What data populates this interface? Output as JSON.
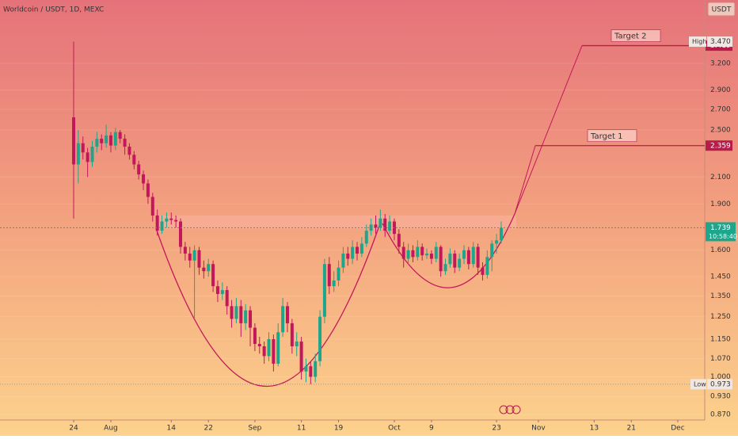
{
  "chart_data": {
    "type": "candlestick",
    "title": "Worldcoin / USDT, 1D, MEXC",
    "currency": "USDT",
    "log_scale": true,
    "grid": true,
    "up_color": "#1fa58c",
    "down_color": "#c2185b",
    "xlim": [
      -23.85,
      127.8
    ],
    "ylim": [
      0.852,
      4.05
    ],
    "xticks": [
      {
        "value": -8,
        "label": "24"
      },
      {
        "value": 0,
        "label": "Aug"
      },
      {
        "value": 13,
        "label": "14"
      },
      {
        "value": 21,
        "label": "22"
      },
      {
        "value": 31,
        "label": "Sep"
      },
      {
        "value": 41,
        "label": "11"
      },
      {
        "value": 49,
        "label": "19"
      },
      {
        "value": 61,
        "label": "Oct"
      },
      {
        "value": 69,
        "label": "9"
      },
      {
        "value": 83,
        "label": "23"
      },
      {
        "value": 92,
        "label": "Nov"
      },
      {
        "value": 104,
        "label": "13"
      },
      {
        "value": 112,
        "label": "21"
      },
      {
        "value": 122,
        "label": "Dec"
      }
    ],
    "yticks": [
      {
        "value": 3.2,
        "label": "3.200"
      },
      {
        "value": 2.9,
        "label": "2.900"
      },
      {
        "value": 2.7,
        "label": "2.700"
      },
      {
        "value": 2.5,
        "label": "2.500"
      },
      {
        "value": 2.1,
        "label": "2.100"
      },
      {
        "value": 1.9,
        "label": "1.900"
      },
      {
        "value": 1.6,
        "label": "1.600"
      },
      {
        "value": 1.45,
        "label": "1.450"
      },
      {
        "value": 1.35,
        "label": "1.350"
      },
      {
        "value": 1.25,
        "label": "1.250"
      },
      {
        "value": 1.15,
        "label": "1.150"
      },
      {
        "value": 1.07,
        "label": "1.070"
      },
      {
        "value": 1,
        "label": "1.000"
      },
      {
        "value": 0.93,
        "label": "0.930"
      },
      {
        "value": 0.87,
        "label": "0.870"
      }
    ],
    "x": [
      -8,
      -7,
      -6,
      -5,
      -4,
      -3,
      -2,
      -1,
      0,
      1,
      2,
      3,
      4,
      5,
      6,
      7,
      8,
      9,
      10,
      11,
      12,
      13,
      14,
      15,
      16,
      17,
      18,
      19,
      20,
      21,
      22,
      23,
      24,
      25,
      26,
      27,
      28,
      29,
      30,
      31,
      32,
      33,
      34,
      35,
      36,
      37,
      38,
      39,
      40,
      41,
      42,
      43,
      44,
      45,
      46,
      47,
      48,
      49,
      50,
      51,
      52,
      53,
      54,
      55,
      56,
      57,
      58,
      59,
      60,
      61,
      62,
      63,
      64,
      65,
      66,
      67,
      68,
      69,
      70,
      71,
      72,
      73,
      74,
      75,
      76,
      77,
      78,
      79,
      80,
      81,
      82,
      83,
      84
    ],
    "open": [
      2.62,
      2.2,
      2.38,
      2.3,
      2.22,
      2.35,
      2.42,
      2.38,
      2.45,
      2.36,
      2.48,
      2.42,
      2.35,
      2.28,
      2.2,
      2.12,
      2.05,
      1.95,
      1.82,
      1.72,
      1.78,
      1.8,
      1.79,
      1.78,
      1.62,
      1.58,
      1.54,
      1.6,
      1.5,
      1.48,
      1.52,
      1.4,
      1.36,
      1.38,
      1.3,
      1.24,
      1.3,
      1.22,
      1.28,
      1.2,
      1.13,
      1.12,
      1.08,
      1.15,
      1.05,
      1.18,
      1.3,
      1.22,
      1.12,
      1.14,
      1.02,
      1.04,
      1.0,
      1.06,
      1.25,
      1.52,
      1.4,
      1.43,
      1.5,
      1.58,
      1.55,
      1.62,
      1.58,
      1.64,
      1.72,
      1.76,
      1.74,
      1.8,
      1.72,
      1.78,
      1.7,
      1.62,
      1.55,
      1.6,
      1.56,
      1.62,
      1.57,
      1.58,
      1.55,
      1.62,
      1.48,
      1.52,
      1.58,
      1.5,
      1.55,
      1.6,
      1.52,
      1.62,
      1.5,
      1.46,
      1.56,
      1.64,
      1.66
    ],
    "high": [
      3.47,
      2.5,
      2.44,
      2.34,
      2.4,
      2.48,
      2.46,
      2.55,
      2.48,
      2.52,
      2.5,
      2.46,
      2.38,
      2.31,
      2.23,
      2.15,
      2.08,
      1.98,
      1.86,
      1.82,
      1.84,
      1.84,
      1.82,
      1.8,
      1.65,
      1.62,
      1.63,
      1.62,
      1.54,
      1.55,
      1.54,
      1.43,
      1.42,
      1.4,
      1.33,
      1.34,
      1.33,
      1.31,
      1.3,
      1.22,
      1.16,
      1.14,
      1.18,
      1.17,
      1.22,
      1.34,
      1.32,
      1.24,
      1.18,
      1.16,
      1.07,
      1.06,
      1.09,
      1.28,
      1.55,
      1.56,
      1.48,
      1.54,
      1.62,
      1.62,
      1.66,
      1.65,
      1.68,
      1.76,
      1.8,
      1.82,
      1.86,
      1.83,
      1.82,
      1.8,
      1.73,
      1.65,
      1.64,
      1.63,
      1.66,
      1.64,
      1.61,
      1.6,
      1.65,
      1.63,
      1.55,
      1.61,
      1.6,
      1.58,
      1.63,
      1.62,
      1.65,
      1.64,
      1.53,
      1.6,
      1.66,
      1.7,
      1.78
    ],
    "low": [
      1.8,
      2.05,
      2.24,
      2.1,
      2.18,
      2.3,
      2.32,
      2.34,
      2.3,
      2.32,
      2.38,
      2.28,
      2.24,
      2.16,
      2.08,
      2.0,
      1.9,
      1.78,
      1.69,
      1.7,
      1.74,
      1.76,
      1.74,
      1.58,
      1.54,
      1.5,
      1.24,
      1.46,
      1.44,
      1.45,
      1.37,
      1.32,
      1.33,
      1.26,
      1.2,
      1.22,
      1.16,
      1.19,
      1.12,
      1.1,
      1.09,
      1.05,
      1.06,
      1.02,
      1.04,
      1.16,
      1.18,
      1.09,
      1.08,
      0.99,
      0.98,
      0.973,
      0.98,
      1.04,
      1.22,
      1.36,
      1.37,
      1.4,
      1.47,
      1.51,
      1.52,
      1.54,
      1.56,
      1.62,
      1.69,
      1.7,
      1.72,
      1.68,
      1.7,
      1.66,
      1.58,
      1.5,
      1.52,
      1.53,
      1.54,
      1.54,
      1.55,
      1.52,
      1.53,
      1.45,
      1.46,
      1.5,
      1.47,
      1.48,
      1.52,
      1.49,
      1.5,
      1.46,
      1.43,
      1.44,
      1.48,
      1.58,
      1.64
    ],
    "close": [
      2.2,
      2.38,
      2.3,
      2.22,
      2.35,
      2.42,
      2.38,
      2.45,
      2.36,
      2.48,
      2.42,
      2.35,
      2.28,
      2.2,
      2.12,
      2.05,
      1.95,
      1.82,
      1.72,
      1.78,
      1.8,
      1.79,
      1.78,
      1.62,
      1.58,
      1.54,
      1.6,
      1.5,
      1.48,
      1.52,
      1.4,
      1.36,
      1.38,
      1.3,
      1.24,
      1.3,
      1.22,
      1.28,
      1.2,
      1.13,
      1.12,
      1.08,
      1.15,
      1.05,
      1.18,
      1.3,
      1.22,
      1.12,
      1.14,
      1.02,
      1.04,
      1.0,
      1.06,
      1.25,
      1.52,
      1.4,
      1.43,
      1.5,
      1.58,
      1.55,
      1.62,
      1.58,
      1.64,
      1.72,
      1.76,
      1.74,
      1.8,
      1.72,
      1.78,
      1.7,
      1.62,
      1.55,
      1.6,
      1.56,
      1.62,
      1.57,
      1.58,
      1.55,
      1.62,
      1.48,
      1.52,
      1.58,
      1.5,
      1.55,
      1.6,
      1.52,
      1.62,
      1.5,
      1.46,
      1.56,
      1.64,
      1.66,
      1.739
    ],
    "targets": [
      {
        "label": "Target 2",
        "value": 3.419
      },
      {
        "label": "Target 1",
        "value": 2.359
      }
    ],
    "high_marker": {
      "label": "High",
      "value": 3.47,
      "value_label": "3.470"
    },
    "low_marker": {
      "label": "Low",
      "value": 0.973
    },
    "last_price": {
      "value": 1.739,
      "countdown": "10:58:40"
    }
  }
}
